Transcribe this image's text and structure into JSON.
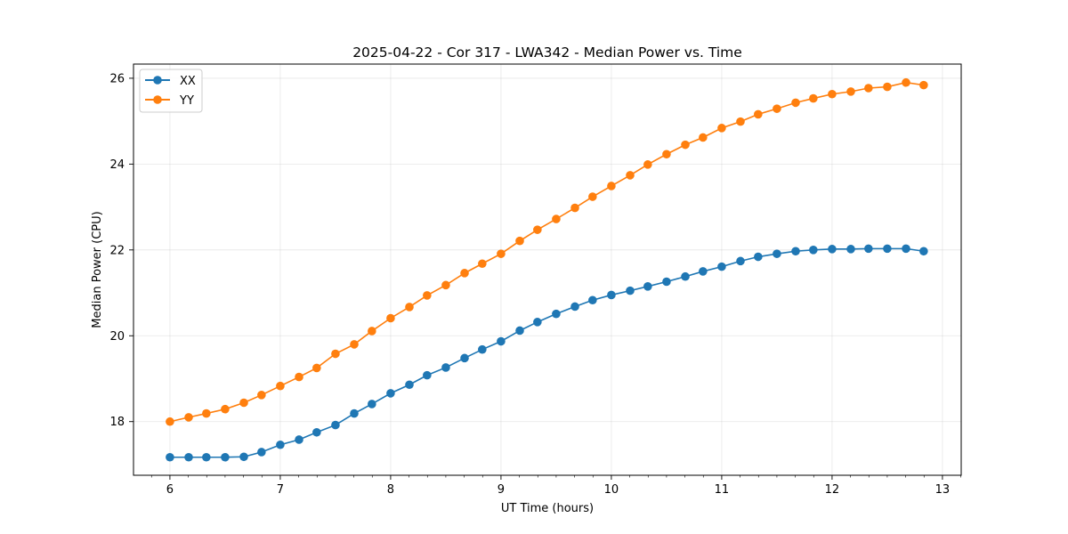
{
  "chart_data": {
    "type": "line",
    "title": "2025-04-22 - Cor 317 - LWA342 - Median Power vs. Time",
    "xlabel": "UT Time (hours)",
    "ylabel": "Median Power (CPU)",
    "xlim": [
      5.67,
      13.17
    ],
    "ylim": [
      16.75,
      26.33
    ],
    "xticks": [
      6,
      7,
      8,
      9,
      10,
      11,
      12,
      13
    ],
    "yticks": [
      18,
      20,
      22,
      24,
      26
    ],
    "grid": true,
    "legend_position": "upper-left",
    "x": [
      6.0,
      6.17,
      6.33,
      6.5,
      6.67,
      6.83,
      7.0,
      7.17,
      7.33,
      7.5,
      7.67,
      7.83,
      8.0,
      8.17,
      8.33,
      8.5,
      8.67,
      8.83,
      9.0,
      9.17,
      9.33,
      9.5,
      9.67,
      9.83,
      10.0,
      10.17,
      10.33,
      10.5,
      10.67,
      10.83,
      11.0,
      11.17,
      11.33,
      11.5,
      11.67,
      11.83,
      12.0,
      12.17,
      12.33,
      12.5,
      12.67,
      12.83
    ],
    "series": [
      {
        "name": "XX",
        "color": "#1f77b4",
        "values": [
          17.17,
          17.17,
          17.17,
          17.17,
          17.18,
          17.29,
          17.46,
          17.58,
          17.75,
          17.92,
          18.19,
          18.41,
          18.66,
          18.86,
          19.08,
          19.26,
          19.48,
          19.68,
          19.87,
          20.12,
          20.32,
          20.51,
          20.68,
          20.83,
          20.95,
          21.05,
          21.15,
          21.26,
          21.38,
          21.5,
          21.61,
          21.74,
          21.84,
          21.91,
          21.97,
          22.0,
          22.02,
          22.02,
          22.03,
          22.03,
          22.03,
          21.97
        ]
      },
      {
        "name": "YY",
        "color": "#ff7f0e",
        "values": [
          18.0,
          18.1,
          18.19,
          18.29,
          18.44,
          18.62,
          18.83,
          19.04,
          19.25,
          19.58,
          19.8,
          20.11,
          20.41,
          20.67,
          20.94,
          21.18,
          21.46,
          21.68,
          21.91,
          22.21,
          22.47,
          22.72,
          22.98,
          23.24,
          23.49,
          23.74,
          23.99,
          24.23,
          24.45,
          24.62,
          24.84,
          24.99,
          25.16,
          25.29,
          25.43,
          25.53,
          25.63,
          25.69,
          25.77,
          25.8,
          25.9,
          25.84
        ]
      }
    ]
  }
}
